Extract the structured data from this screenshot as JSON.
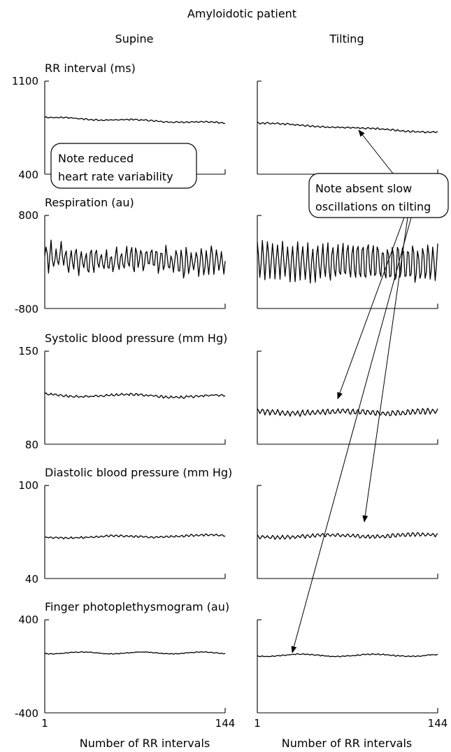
{
  "figure": {
    "title": "Amyloidotic patient",
    "column_titles": [
      "Supine",
      "Tilting"
    ],
    "x_axis": {
      "label": "Number of RR intervals",
      "tick_labels": [
        "1",
        "144"
      ],
      "range": [
        1,
        144
      ]
    },
    "notes": {
      "left": [
        "Note reduced",
        "heart rate variability"
      ],
      "right": [
        "Note absent slow",
        "oscillations on tilting"
      ]
    },
    "colors": {
      "trace": "#000000",
      "axis": "#000000",
      "box": "#000000"
    }
  },
  "chart_data": [
    {
      "type": "line",
      "title": "RR interval (ms)",
      "ylim": [
        400,
        1100
      ],
      "ytick_labels": [
        "1100",
        "400"
      ],
      "series": [
        {
          "condition": "Supine",
          "baseline": 825,
          "slope": -40,
          "slow": {
            "amp": 5,
            "cycles": 2.5
          },
          "fast": {
            "amp": 4,
            "cycles": 36
          },
          "noise": 3
        },
        {
          "condition": "Tilting",
          "baseline": 785,
          "slope": -70,
          "slow": {
            "amp": 4,
            "cycles": 2
          },
          "fast": {
            "amp": 5,
            "cycles": 36
          },
          "noise": 3
        }
      ]
    },
    {
      "type": "line",
      "title": "Respiration (au)",
      "ylim": [
        -800,
        800
      ],
      "ytick_labels": [
        "800",
        "-800"
      ],
      "series": [
        {
          "condition": "Supine",
          "baseline": 50,
          "slope": -40,
          "slow": {
            "amp": 40,
            "cycles": 2
          },
          "fast": {
            "amp": 200,
            "cycles": 36
          },
          "noise": 90
        },
        {
          "condition": "Tilting",
          "baseline": 20,
          "slope": -40,
          "slow": {
            "amp": 20,
            "cycles": 2
          },
          "fast": {
            "amp": 300,
            "cycles": 36
          },
          "noise": 60
        }
      ]
    },
    {
      "type": "line",
      "title": "Systolic blood pressure (mm Hg)",
      "ylim": [
        80,
        150
      ],
      "ytick_labels": [
        "150",
        "80"
      ],
      "series": [
        {
          "condition": "Supine",
          "baseline": 117,
          "slope": -1,
          "slow": {
            "amp": 1,
            "cycles": 2
          },
          "fast": {
            "amp": 0.6,
            "cycles": 36
          },
          "noise": 0.5
        },
        {
          "condition": "Tilting",
          "baseline": 104,
          "slope": 0,
          "slow": {
            "amp": 0.8,
            "cycles": 2
          },
          "fast": {
            "amp": 1.9,
            "cycles": 36
          },
          "noise": 0.6
        }
      ]
    },
    {
      "type": "line",
      "title": "Diastolic blood pressure (mm Hg)",
      "ylim": [
        40,
        100
      ],
      "ytick_labels": [
        "100",
        "40"
      ],
      "series": [
        {
          "condition": "Supine",
          "baseline": 66.5,
          "slope": 1.2,
          "slow": {
            "amp": 0.5,
            "cycles": 2
          },
          "fast": {
            "amp": 0.5,
            "cycles": 36
          },
          "noise": 0.3
        },
        {
          "condition": "Tilting",
          "baseline": 67,
          "slope": 1,
          "slow": {
            "amp": 0.6,
            "cycles": 2
          },
          "fast": {
            "amp": 1.1,
            "cycles": 36
          },
          "noise": 0.4
        }
      ]
    },
    {
      "type": "line",
      "title": "Finger photoplethysmogram (au)",
      "ylim": [
        -400,
        400
      ],
      "ytick_labels": [
        "400",
        "-400"
      ],
      "series": [
        {
          "condition": "Supine",
          "baseline": 115,
          "slope": 0,
          "slow": {
            "amp": 8,
            "cycles": 3
          },
          "fast": {
            "amp": 2,
            "cycles": 36
          },
          "noise": 2
        },
        {
          "condition": "Tilting",
          "baseline": 95,
          "slope": 0,
          "slow": {
            "amp": 10,
            "cycles": 2.5
          },
          "fast": {
            "amp": 3,
            "cycles": 36
          },
          "noise": 3
        }
      ]
    }
  ]
}
